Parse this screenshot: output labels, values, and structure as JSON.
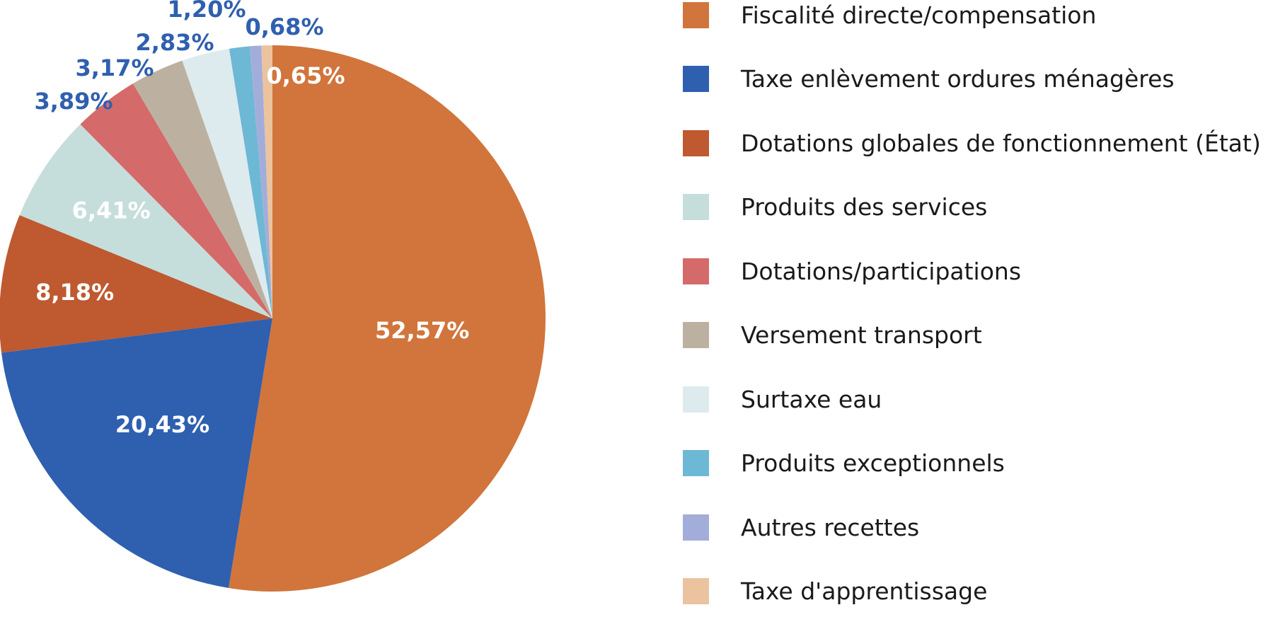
{
  "chart_data": {
    "type": "pie",
    "start_angle": "12 o'clock",
    "direction": "clockwise",
    "slices": [
      {
        "label": "Fiscalité directe/compensation",
        "value": 52.57,
        "display": "52,57%",
        "color": "#D1753C"
      },
      {
        "label": "Taxe enlèvement ordures ménagères",
        "value": 20.43,
        "display": "20,43%",
        "color": "#2F5FAF"
      },
      {
        "label": "Dotations globales de fonctionnement (État)",
        "value": 8.18,
        "display": "8,18%",
        "color": "#BE5930"
      },
      {
        "label": "Produits des services",
        "value": 6.41,
        "display": "6,41%",
        "color": "#C5DEDC"
      },
      {
        "label": "Dotations/participations",
        "value": 3.89,
        "display": "3,89%",
        "color": "#D56A6A"
      },
      {
        "label": "Versement transport",
        "value": 3.17,
        "display": "3,17%",
        "color": "#BCB1A1"
      },
      {
        "label": "Surtaxe eau",
        "value": 2.83,
        "display": "2,83%",
        "color": "#DDEBEE"
      },
      {
        "label": "Produits exceptionnels",
        "value": 1.2,
        "display": "1,20%",
        "color": "#6DB8D5"
      },
      {
        "label": "Autres recettes",
        "value": 0.68,
        "display": "0,68%",
        "color": "#A3ADDA"
      },
      {
        "label": "Taxe d'apprentissage",
        "value": 0.65,
        "display": "0,65%",
        "color": "#EBC39F"
      }
    ],
    "legend_position": "right",
    "label_colors": {
      "inside": "#FFFFFF",
      "outside": "#2F5FAF"
    }
  }
}
